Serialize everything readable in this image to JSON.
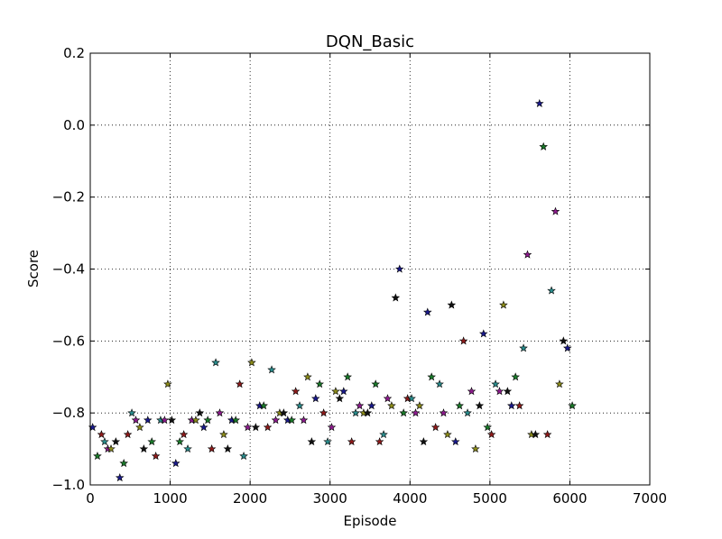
{
  "chart_data": {
    "type": "scatter",
    "title": "DQN_Basic",
    "xlabel": "Episode",
    "ylabel": "Score",
    "xlim": [
      0,
      7000
    ],
    "ylim": [
      -1.0,
      0.2
    ],
    "xticks": [
      0,
      1000,
      2000,
      3000,
      4000,
      5000,
      6000,
      7000
    ],
    "xtick_labels": [
      "0",
      "1000",
      "2000",
      "3000",
      "4000",
      "5000",
      "6000",
      "7000"
    ],
    "yticks": [
      -1.0,
      -0.8,
      -0.6,
      -0.4,
      -0.2,
      0.0,
      0.2
    ],
    "ytick_labels": [
      "−1.0",
      "−0.8",
      "−0.6",
      "−0.4",
      "−0.2",
      "0.0",
      "0.2"
    ],
    "grid": true,
    "marker": "star",
    "point_colors": [
      "#1a1a8c",
      "#1a7a2a",
      "#8c1a1a",
      "#2a8c8c",
      "#8c1a8c",
      "#8c8c1a",
      "#111111"
    ],
    "points": [
      [
        30,
        -0.84
      ],
      [
        90,
        -0.92
      ],
      [
        140,
        -0.86
      ],
      [
        180,
        -0.88
      ],
      [
        220,
        -0.9
      ],
      [
        260,
        -0.9
      ],
      [
        320,
        -0.88
      ],
      [
        370,
        -0.98
      ],
      [
        420,
        -0.94
      ],
      [
        470,
        -0.86
      ],
      [
        520,
        -0.8
      ],
      [
        570,
        -0.82
      ],
      [
        620,
        -0.84
      ],
      [
        670,
        -0.9
      ],
      [
        720,
        -0.82
      ],
      [
        770,
        -0.88
      ],
      [
        820,
        -0.92
      ],
      [
        880,
        -0.82
      ],
      [
        930,
        -0.82
      ],
      [
        970,
        -0.72
      ],
      [
        1020,
        -0.82
      ],
      [
        1070,
        -0.94
      ],
      [
        1120,
        -0.88
      ],
      [
        1170,
        -0.86
      ],
      [
        1220,
        -0.9
      ],
      [
        1270,
        -0.82
      ],
      [
        1320,
        -0.82
      ],
      [
        1370,
        -0.8
      ],
      [
        1420,
        -0.84
      ],
      [
        1470,
        -0.82
      ],
      [
        1520,
        -0.9
      ],
      [
        1570,
        -0.66
      ],
      [
        1620,
        -0.8
      ],
      [
        1670,
        -0.86
      ],
      [
        1720,
        -0.9
      ],
      [
        1770,
        -0.82
      ],
      [
        1820,
        -0.82
      ],
      [
        1870,
        -0.72
      ],
      [
        1920,
        -0.92
      ],
      [
        1970,
        -0.84
      ],
      [
        2020,
        -0.66
      ],
      [
        2070,
        -0.84
      ],
      [
        2120,
        -0.78
      ],
      [
        2170,
        -0.78
      ],
      [
        2220,
        -0.84
      ],
      [
        2270,
        -0.68
      ],
      [
        2320,
        -0.82
      ],
      [
        2370,
        -0.8
      ],
      [
        2420,
        -0.8
      ],
      [
        2470,
        -0.82
      ],
      [
        2520,
        -0.82
      ],
      [
        2570,
        -0.74
      ],
      [
        2620,
        -0.78
      ],
      [
        2670,
        -0.82
      ],
      [
        2720,
        -0.7
      ],
      [
        2770,
        -0.88
      ],
      [
        2820,
        -0.76
      ],
      [
        2870,
        -0.72
      ],
      [
        2920,
        -0.8
      ],
      [
        2970,
        -0.88
      ],
      [
        3020,
        -0.84
      ],
      [
        3070,
        -0.74
      ],
      [
        3120,
        -0.76
      ],
      [
        3170,
        -0.74
      ],
      [
        3220,
        -0.7
      ],
      [
        3270,
        -0.88
      ],
      [
        3320,
        -0.8
      ],
      [
        3370,
        -0.78
      ],
      [
        3420,
        -0.8
      ],
      [
        3470,
        -0.8
      ],
      [
        3520,
        -0.78
      ],
      [
        3570,
        -0.72
      ],
      [
        3620,
        -0.88
      ],
      [
        3670,
        -0.86
      ],
      [
        3720,
        -0.76
      ],
      [
        3770,
        -0.78
      ],
      [
        3820,
        -0.48
      ],
      [
        3870,
        -0.4
      ],
      [
        3920,
        -0.8
      ],
      [
        3970,
        -0.76
      ],
      [
        4020,
        -0.76
      ],
      [
        4070,
        -0.8
      ],
      [
        4120,
        -0.78
      ],
      [
        4170,
        -0.88
      ],
      [
        4220,
        -0.52
      ],
      [
        4270,
        -0.7
      ],
      [
        4320,
        -0.84
      ],
      [
        4370,
        -0.72
      ],
      [
        4420,
        -0.8
      ],
      [
        4470,
        -0.86
      ],
      [
        4520,
        -0.5
      ],
      [
        4570,
        -0.88
      ],
      [
        4620,
        -0.78
      ],
      [
        4670,
        -0.6
      ],
      [
        4720,
        -0.8
      ],
      [
        4770,
        -0.74
      ],
      [
        4820,
        -0.9
      ],
      [
        4870,
        -0.78
      ],
      [
        4920,
        -0.58
      ],
      [
        4970,
        -0.84
      ],
      [
        5020,
        -0.86
      ],
      [
        5070,
        -0.72
      ],
      [
        5120,
        -0.74
      ],
      [
        5170,
        -0.5
      ],
      [
        5220,
        -0.74
      ],
      [
        5270,
        -0.78
      ],
      [
        5320,
        -0.7
      ],
      [
        5370,
        -0.78
      ],
      [
        5420,
        -0.62
      ],
      [
        5470,
        -0.36
      ],
      [
        5520,
        -0.86
      ],
      [
        5570,
        -0.86
      ],
      [
        5620,
        0.06
      ],
      [
        5670,
        -0.06
      ],
      [
        5720,
        -0.86
      ],
      [
        5770,
        -0.46
      ],
      [
        5820,
        -0.24
      ],
      [
        5870,
        -0.72
      ],
      [
        5920,
        -0.6
      ],
      [
        5970,
        -0.62
      ],
      [
        6030,
        -0.78
      ]
    ]
  }
}
